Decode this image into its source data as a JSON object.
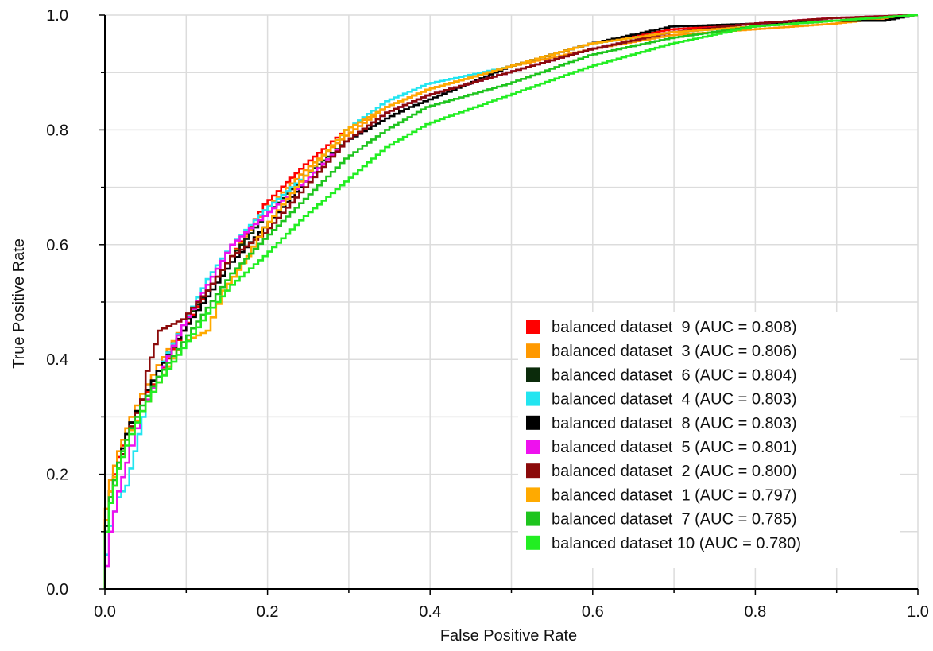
{
  "chart_data": {
    "type": "line",
    "title": "",
    "xlabel": "False Positive Rate",
    "ylabel": "True Positive Rate",
    "xlim": [
      0.0,
      1.0
    ],
    "ylim": [
      0.0,
      1.0
    ],
    "x_ticks": [
      "0.0",
      "0.2",
      "0.4",
      "0.6",
      "0.8",
      "1.0"
    ],
    "y_ticks": [
      "0.0",
      "0.2",
      "0.4",
      "0.6",
      "0.8",
      "1.0"
    ],
    "grid": true,
    "legend_position": "lower-right",
    "series": [
      {
        "name": "balanced dataset  9 (AUC = 0.808)",
        "color": "#ff0000",
        "x": [
          0,
          0.005,
          0.01,
          0.02,
          0.03,
          0.05,
          0.07,
          0.1,
          0.13,
          0.16,
          0.2,
          0.25,
          0.3,
          0.35,
          0.4,
          0.5,
          0.6,
          0.7,
          0.8,
          0.9,
          1.0
        ],
        "y": [
          0,
          0.12,
          0.17,
          0.23,
          0.27,
          0.33,
          0.37,
          0.45,
          0.52,
          0.58,
          0.67,
          0.74,
          0.8,
          0.84,
          0.87,
          0.91,
          0.95,
          0.975,
          0.985,
          0.995,
          1.0
        ]
      },
      {
        "name": "balanced dataset  3 (AUC = 0.806)",
        "color": "#ff9900",
        "x": [
          0,
          0.005,
          0.01,
          0.02,
          0.03,
          0.05,
          0.07,
          0.1,
          0.13,
          0.16,
          0.2,
          0.25,
          0.3,
          0.35,
          0.4,
          0.5,
          0.6,
          0.7,
          0.8,
          0.9,
          1.0
        ],
        "y": [
          0,
          0.14,
          0.19,
          0.24,
          0.28,
          0.34,
          0.39,
          0.46,
          0.52,
          0.58,
          0.66,
          0.73,
          0.79,
          0.84,
          0.87,
          0.91,
          0.94,
          0.965,
          0.975,
          0.985,
          1.0
        ]
      },
      {
        "name": "balanced dataset  6 (AUC = 0.804)",
        "color": "#0b2b0b",
        "x": [
          0,
          0.005,
          0.01,
          0.02,
          0.03,
          0.05,
          0.07,
          0.1,
          0.13,
          0.16,
          0.2,
          0.25,
          0.3,
          0.35,
          0.4,
          0.5,
          0.6,
          0.7,
          0.8,
          0.9,
          1.0
        ],
        "y": [
          0,
          0.11,
          0.17,
          0.22,
          0.27,
          0.33,
          0.38,
          0.46,
          0.52,
          0.58,
          0.65,
          0.72,
          0.78,
          0.83,
          0.86,
          0.9,
          0.94,
          0.97,
          0.98,
          0.99,
          1.0
        ]
      },
      {
        "name": "balanced dataset  4 (AUC = 0.803)",
        "color": "#22e5f0",
        "x": [
          0,
          0.005,
          0.01,
          0.02,
          0.03,
          0.04,
          0.05,
          0.07,
          0.1,
          0.13,
          0.16,
          0.2,
          0.25,
          0.3,
          0.35,
          0.4,
          0.5,
          0.6,
          0.7,
          0.8,
          0.9,
          1.0
        ],
        "y": [
          0,
          0.06,
          0.11,
          0.16,
          0.18,
          0.24,
          0.3,
          0.38,
          0.46,
          0.54,
          0.6,
          0.66,
          0.72,
          0.8,
          0.85,
          0.88,
          0.91,
          0.95,
          0.97,
          0.98,
          0.99,
          1.0
        ]
      },
      {
        "name": "balanced dataset  8 (AUC = 0.803)",
        "color": "#000000",
        "x": [
          0,
          0.005,
          0.01,
          0.02,
          0.03,
          0.05,
          0.07,
          0.1,
          0.13,
          0.16,
          0.2,
          0.25,
          0.3,
          0.35,
          0.38,
          0.45,
          0.5,
          0.6,
          0.7,
          0.8,
          0.9,
          0.96,
          1.0
        ],
        "y": [
          0,
          0.1,
          0.16,
          0.22,
          0.27,
          0.33,
          0.38,
          0.45,
          0.51,
          0.57,
          0.63,
          0.71,
          0.78,
          0.82,
          0.84,
          0.88,
          0.91,
          0.95,
          0.98,
          0.985,
          0.99,
          0.99,
          1.0
        ]
      },
      {
        "name": "balanced dataset  5 (AUC = 0.801)",
        "color": "#ee11ee",
        "x": [
          0,
          0.005,
          0.01,
          0.02,
          0.03,
          0.05,
          0.07,
          0.1,
          0.13,
          0.16,
          0.2,
          0.25,
          0.3,
          0.35,
          0.4,
          0.5,
          0.6,
          0.7,
          0.8,
          0.9,
          1.0
        ],
        "y": [
          0,
          0.04,
          0.1,
          0.17,
          0.22,
          0.31,
          0.37,
          0.46,
          0.53,
          0.6,
          0.65,
          0.71,
          0.78,
          0.83,
          0.86,
          0.9,
          0.94,
          0.97,
          0.985,
          0.995,
          1.0
        ]
      },
      {
        "name": "balanced dataset  2 (AUC = 0.800)",
        "color": "#8b0a0a",
        "x": [
          0,
          0.005,
          0.01,
          0.02,
          0.03,
          0.05,
          0.055,
          0.07,
          0.1,
          0.13,
          0.16,
          0.2,
          0.25,
          0.3,
          0.35,
          0.4,
          0.5,
          0.6,
          0.7,
          0.8,
          0.9,
          1.0
        ],
        "y": [
          0,
          0.1,
          0.15,
          0.21,
          0.26,
          0.33,
          0.38,
          0.45,
          0.47,
          0.52,
          0.58,
          0.62,
          0.7,
          0.78,
          0.83,
          0.86,
          0.9,
          0.94,
          0.97,
          0.985,
          0.995,
          1.0
        ]
      },
      {
        "name": "balanced dataset  1 (AUC = 0.797)",
        "color": "#ffaa00",
        "x": [
          0,
          0.005,
          0.01,
          0.02,
          0.03,
          0.05,
          0.07,
          0.1,
          0.13,
          0.15,
          0.18,
          0.2,
          0.25,
          0.3,
          0.35,
          0.4,
          0.5,
          0.6,
          0.7,
          0.8,
          0.9,
          1.0
        ],
        "y": [
          0,
          0.12,
          0.17,
          0.22,
          0.26,
          0.31,
          0.36,
          0.43,
          0.45,
          0.52,
          0.58,
          0.63,
          0.72,
          0.8,
          0.84,
          0.87,
          0.91,
          0.95,
          0.97,
          0.98,
          0.99,
          1.0
        ]
      },
      {
        "name": "balanced dataset  7 (AUC = 0.785)",
        "color": "#1ec41e",
        "x": [
          0,
          0.005,
          0.01,
          0.02,
          0.03,
          0.05,
          0.07,
          0.1,
          0.13,
          0.16,
          0.2,
          0.25,
          0.3,
          0.35,
          0.4,
          0.5,
          0.6,
          0.7,
          0.8,
          0.9,
          1.0
        ],
        "y": [
          0,
          0.1,
          0.16,
          0.22,
          0.26,
          0.32,
          0.37,
          0.43,
          0.49,
          0.55,
          0.61,
          0.68,
          0.75,
          0.8,
          0.84,
          0.88,
          0.93,
          0.96,
          0.98,
          0.99,
          1.0
        ]
      },
      {
        "name": "balanced dataset 10 (AUC = 0.780)",
        "color": "#22ee22",
        "x": [
          0,
          0.005,
          0.01,
          0.02,
          0.03,
          0.05,
          0.07,
          0.1,
          0.13,
          0.16,
          0.2,
          0.25,
          0.3,
          0.35,
          0.4,
          0.5,
          0.6,
          0.7,
          0.8,
          0.9,
          1.0
        ],
        "y": [
          0,
          0.1,
          0.15,
          0.21,
          0.25,
          0.31,
          0.36,
          0.42,
          0.48,
          0.53,
          0.58,
          0.65,
          0.71,
          0.77,
          0.81,
          0.86,
          0.91,
          0.95,
          0.98,
          0.99,
          1.0
        ]
      }
    ]
  }
}
